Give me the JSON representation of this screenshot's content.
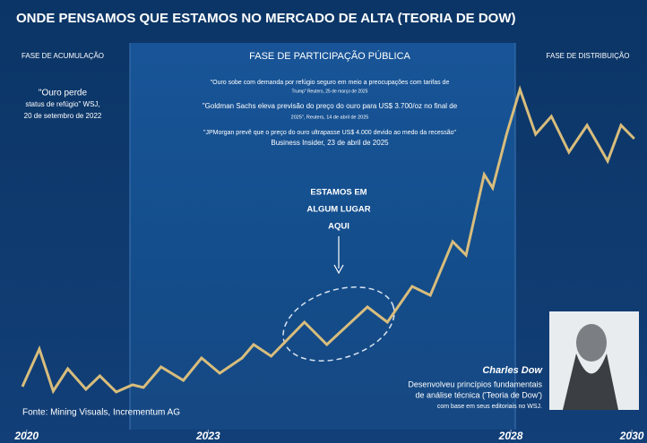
{
  "chart_data": {
    "type": "line",
    "title": "ONDE PENSAMOS QUE ESTAMOS NO MERCADO DE ALTA (TEORIA DE DOW)",
    "phases": [
      "FASE DE ACUMULAÇÃO",
      "FASE DE PARTICIPAÇÃO PÚBLICA",
      "FASE DE DISTRIBUIÇÃO"
    ],
    "left_quote": [
      "\"Ouro perde",
      "status de refúgio\" WSJ,",
      "20 de setembro de 2022"
    ],
    "quotes": [
      [
        "\"Ouro sobe com demanda por refúgio seguro em meio a preocupações com tarifas de",
        "Trump\" Reuters, 25 de março de 2025"
      ],
      [
        "\"Goldman Sachs eleva previsão do preço do ouro para US$ 3.700/oz no final de",
        "2025\", Reuters, 14 de abril de 2025"
      ],
      [
        "\"JPMorgan prevê que o preço do ouro ultrapasse US$ 4.000 devido ao medo da recessão\"",
        "Business Insider, 23 de abril de 2025"
      ]
    ],
    "annotation": [
      "ESTAMOS EM",
      "ALGUM LUGAR",
      "AQUI"
    ],
    "dow_name": "Charles Dow",
    "dow_caption": [
      "Desenvolveu princípios fundamentais",
      "de análise técnica ('Teoria de Dow')",
      "com base em seus editoriais no WSJ."
    ],
    "source": "Fonte: Mining Visuals, Incrementum AG",
    "color": "#d8bd7c",
    "x": [
      2019.93,
      2020.21,
      2020.44,
      2020.68,
      2020.98,
      2021.21,
      2021.48,
      2021.75,
      2021.93,
      2022.22,
      2022.59,
      2022.89,
      2023.19,
      2023.56,
      2023.75,
      2024.04,
      2024.59,
      2024.96,
      2025.63,
      2025.96,
      2026.37,
      2026.67,
      2027.04,
      2027.26,
      2027.56,
      2027.7,
      2027.93,
      2028.15,
      2028.41,
      2028.67,
      2028.96,
      2029.26,
      2029.6,
      2029.82,
      2030.04
    ],
    "values": [
      12,
      22.5,
      10.75,
      17,
      11.25,
      15,
      10.5,
      12.5,
      11.75,
      17.5,
      13.75,
      20,
      15.75,
      20,
      23.75,
      20.5,
      30,
      23.75,
      34.25,
      30,
      40,
      37.5,
      52.5,
      48.75,
      71.25,
      67.5,
      82.5,
      95,
      82.5,
      87.5,
      77.5,
      85,
      75,
      85,
      81.25
    ],
    "xlim": [
      2019.56,
      2030.25
    ],
    "ylim": [
      0,
      100
    ],
    "xticks": [
      2020,
      2023,
      2028,
      2030
    ]
  }
}
